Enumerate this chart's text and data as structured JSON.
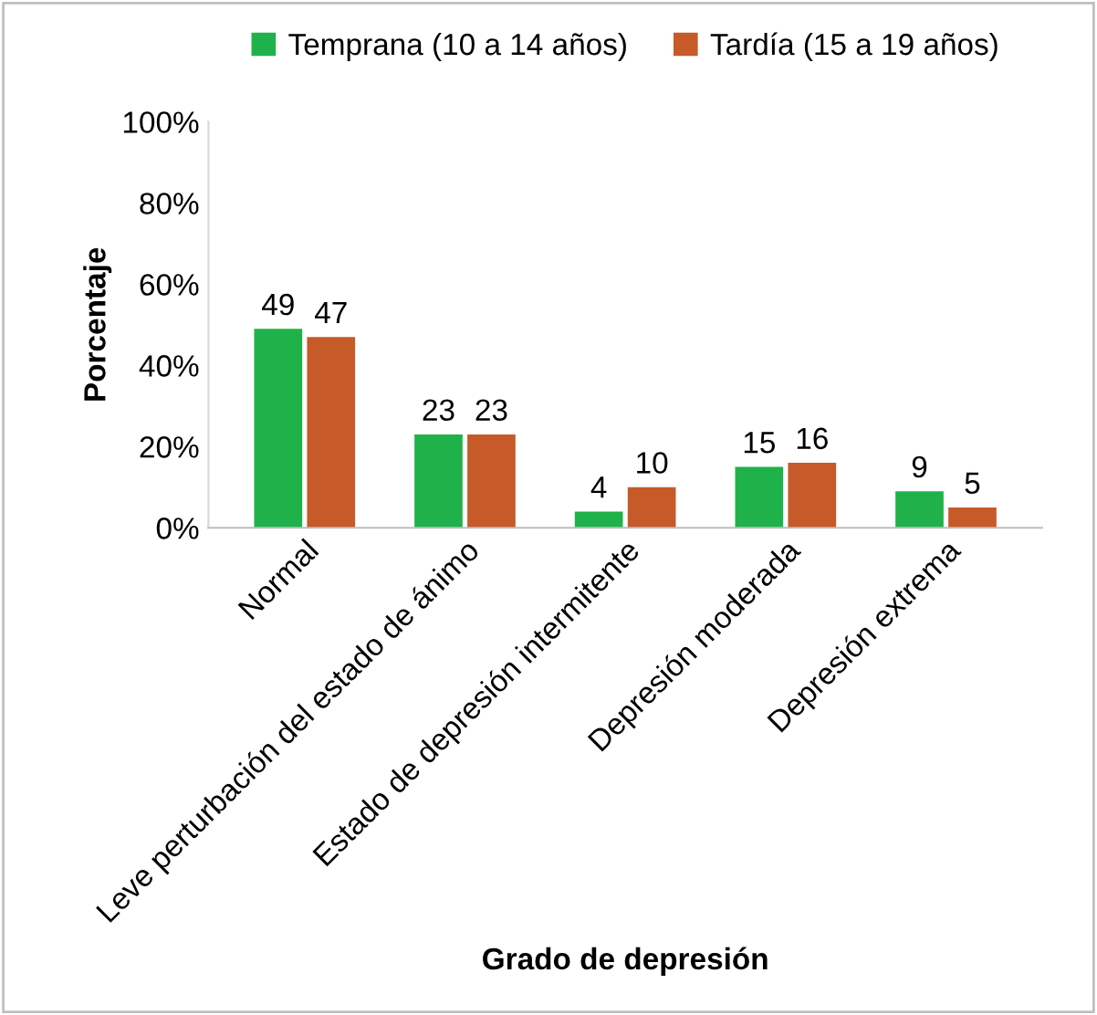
{
  "chart_data": {
    "type": "bar",
    "xlabel": "Grado de depresión",
    "ylabel": "Porcentaje",
    "categories": [
      "Normal",
      "Leve perturbación del estado de ánimo",
      "Estado de depresión intermitente",
      "Depresión moderada",
      "Depresión extrema"
    ],
    "series": [
      {
        "name": "Temprana (10 a 14 años)",
        "color": "#1fb24a",
        "values": [
          49,
          23,
          4,
          15,
          9
        ]
      },
      {
        "name": "Tardía (15 a 19 años)",
        "color": "#c65a28",
        "values": [
          47,
          23,
          10,
          16,
          5
        ]
      }
    ],
    "ylim": [
      0,
      100
    ],
    "yticks": [
      {
        "value": 0,
        "label": "0%"
      },
      {
        "value": 20,
        "label": "20%"
      },
      {
        "value": 40,
        "label": "40%"
      },
      {
        "value": 60,
        "label": "60%"
      },
      {
        "value": 80,
        "label": "80%"
      },
      {
        "value": 100,
        "label": "100%"
      }
    ],
    "data_labels": true,
    "legend": "top",
    "grid": false
  }
}
